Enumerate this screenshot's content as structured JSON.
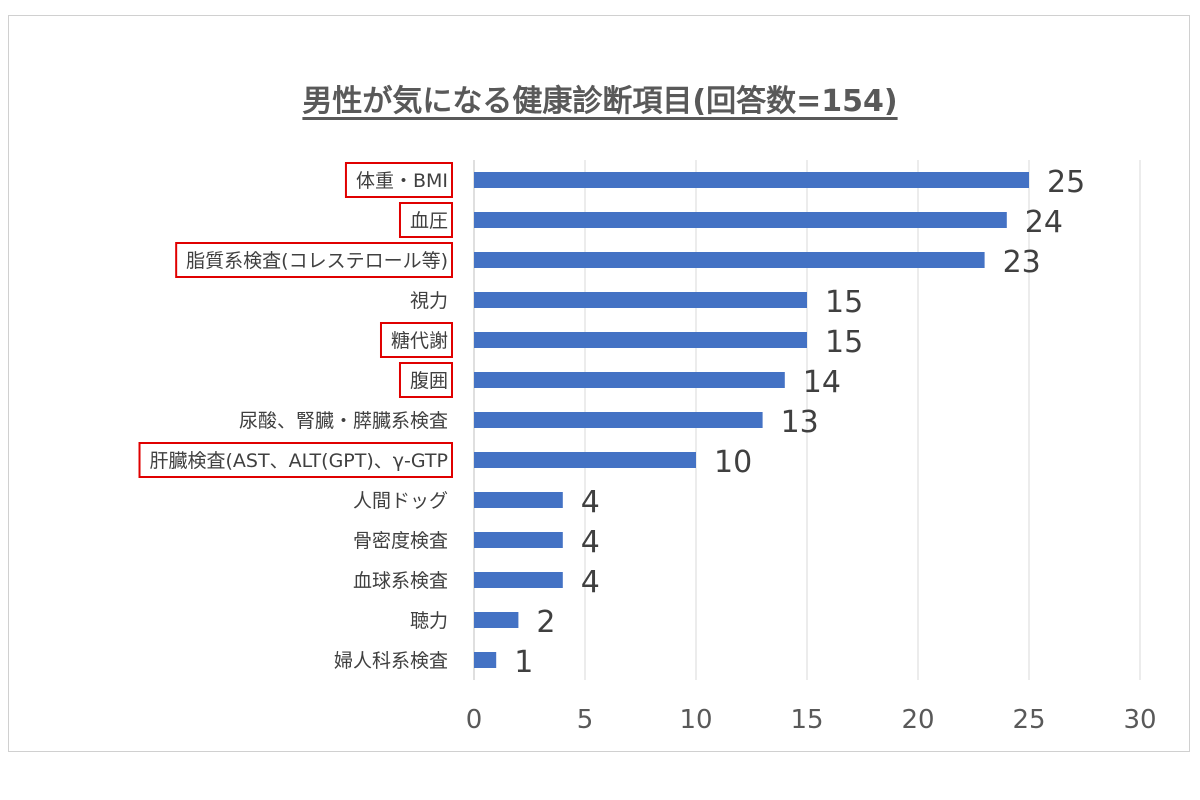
{
  "chart_data": {
    "type": "bar",
    "orientation": "horizontal",
    "title": "男性が気になる健康診断項目(回答数=154)",
    "categories": [
      "体重・BMI",
      "血圧",
      "脂質系検査(コレステロール等)",
      "視力",
      "糖代謝",
      "腹囲",
      "尿酸、腎臓・膵臓系検査",
      "肝臓検査(AST、ALT(GPT)、γ-GTP",
      "人間ドッグ",
      "骨密度検査",
      "血球系検査",
      "聴力",
      "婦人科系検査"
    ],
    "values": [
      25,
      24,
      23,
      15,
      15,
      14,
      13,
      10,
      4,
      4,
      4,
      2,
      1
    ],
    "highlighted": [
      "体重・BMI",
      "血圧",
      "脂質系検査(コレステロール等)",
      "糖代謝",
      "腹囲",
      "肝臓検査(AST、ALT(GPT)、γ-GTP"
    ],
    "xlim": [
      0,
      30
    ],
    "xticks": [
      0,
      5,
      10,
      15,
      20,
      25,
      30
    ],
    "grid": true,
    "bar_color": "#4472c4",
    "highlight_color": "#e00000",
    "data_labels": true
  }
}
